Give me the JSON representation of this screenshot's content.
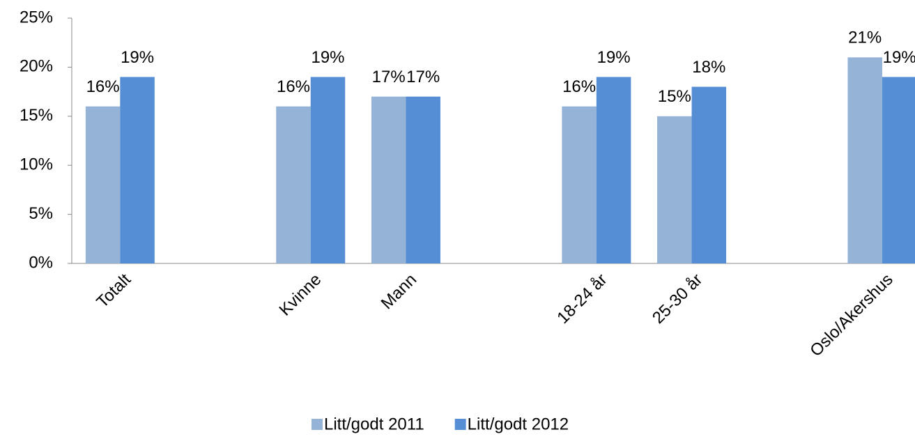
{
  "chart_data": {
    "type": "bar",
    "categories": [
      "Totalt",
      null,
      "Kvinne",
      "Mann",
      null,
      "18-24 år",
      "25-30 år",
      null,
      "Oslo/Akershus"
    ],
    "series": [
      {
        "name": "Litt/godt 2011",
        "color": "#95b3d7",
        "values": [
          16,
          null,
          16,
          17,
          null,
          16,
          15,
          null,
          21
        ],
        "value_labels": [
          "16%",
          null,
          "16%",
          "17%",
          null,
          "16%",
          "15%",
          null,
          "21%"
        ]
      },
      {
        "name": "Litt/godt 2012",
        "color": "#558ed5",
        "values": [
          19,
          null,
          19,
          17,
          null,
          19,
          18,
          null,
          19
        ],
        "value_labels": [
          "19%",
          null,
          "19%",
          "17%",
          null,
          "19%",
          "18%",
          null,
          "19%"
        ]
      }
    ],
    "ylim": [
      0,
      25
    ],
    "yticks": [
      {
        "value": 0,
        "label": "0%"
      },
      {
        "value": 5,
        "label": "5%"
      },
      {
        "value": 10,
        "label": "10%"
      },
      {
        "value": 15,
        "label": "15%"
      },
      {
        "value": 20,
        "label": "20%"
      },
      {
        "value": 25,
        "label": "25%"
      }
    ],
    "legend": "bottom"
  }
}
